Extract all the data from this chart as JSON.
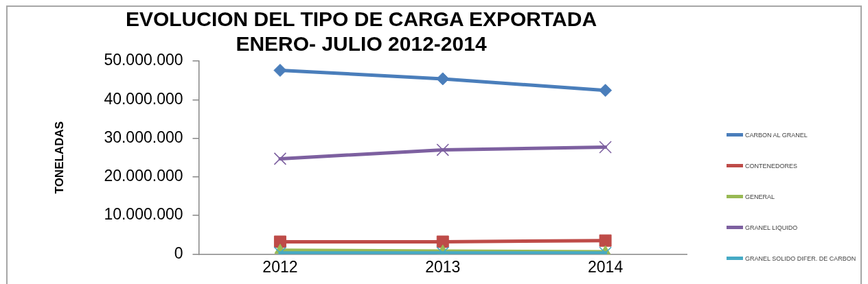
{
  "chart_data": {
    "type": "line",
    "title": "EVOLUCION DEL TIPO DE CARGA EXPORTADA\nENERO- JULIO 2012-2014",
    "ylabel": "TONELADAS",
    "categories": [
      "2012",
      "2013",
      "2014"
    ],
    "series": [
      {
        "name": "CARBON AL GRANEL",
        "color": "#4a7ebb",
        "marker": "diamond",
        "values": [
          47600000,
          45400000,
          42400000
        ]
      },
      {
        "name": "CONTENEDORES",
        "color": "#be4b48",
        "marker": "square",
        "values": [
          3200000,
          3200000,
          3500000
        ]
      },
      {
        "name": "GENERAL",
        "color": "#98b954",
        "marker": "triangle",
        "values": [
          1000000,
          800000,
          600000
        ]
      },
      {
        "name": "GRANEL LIQUIDO",
        "color": "#7d60a0",
        "marker": "cross",
        "values": [
          24700000,
          27000000,
          27700000
        ]
      },
      {
        "name": "GRANEL SOLIDO DIFER. DE CARBON",
        "color": "#46aac5",
        "marker": "cross",
        "values": [
          300000,
          300000,
          300000
        ]
      }
    ],
    "ylim": [
      0,
      50000000
    ],
    "yticks": [
      0,
      {
        "value": 10000000,
        "label": "10.000.000"
      },
      {
        "value": 20000000,
        "label": "20.000.000"
      },
      {
        "value": 30000000,
        "label": "30.000.000"
      },
      {
        "value": 40000000,
        "label": "40.000.000"
      },
      {
        "value": 50000000,
        "label": "50.000.000"
      }
    ],
    "grid": false,
    "legend": "right",
    "line_style": "solid"
  }
}
